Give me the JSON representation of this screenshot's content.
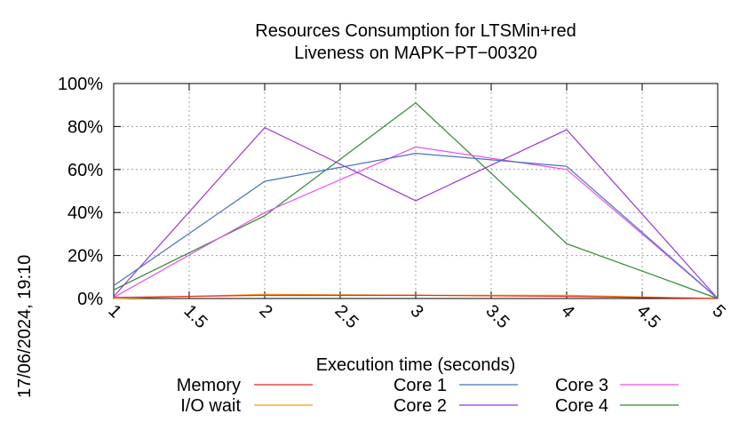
{
  "chart_data": {
    "type": "line",
    "title": "Resources Consumption for LTSMin+red",
    "subtitle": "Liveness on MAPK−PT−00320",
    "xlabel": "Execution time (seconds)",
    "ylabel": "",
    "timestamp": "17/06/2024, 19:10",
    "xlim": [
      1,
      5
    ],
    "ylim": [
      0,
      100
    ],
    "x_ticks": [
      "1",
      "1.5",
      "2",
      "2.5",
      "3",
      "3.5",
      "4",
      "4.5",
      "5"
    ],
    "x_tick_values": [
      1,
      1.5,
      2,
      2.5,
      3,
      3.5,
      4,
      4.5,
      5
    ],
    "y_ticks": [
      "0%",
      "20%",
      "40%",
      "60%",
      "80%",
      "100%"
    ],
    "y_tick_values": [
      0,
      20,
      40,
      60,
      80,
      100
    ],
    "grid": true,
    "legend_position": "bottom",
    "x": [
      1,
      2,
      3,
      4,
      5
    ],
    "series": [
      {
        "name": "Memory",
        "color": "#e8281e",
        "values": [
          0.5,
          1.5,
          1.5,
          1.0,
          0
        ]
      },
      {
        "name": "I/O wait",
        "color": "#f0a020",
        "values": [
          0,
          2,
          1.5,
          1.5,
          0
        ]
      },
      {
        "name": "Core 1",
        "color": "#4472c4",
        "values": [
          6,
          54.5,
          67.5,
          61.5,
          0
        ]
      },
      {
        "name": "Core 2",
        "color": "#9c36d4",
        "values": [
          1,
          79.5,
          45.5,
          78.5,
          0
        ]
      },
      {
        "name": "Core 3",
        "color": "#ee50ee",
        "values": [
          0.5,
          40,
          70.5,
          60,
          0
        ]
      },
      {
        "name": "Core 4",
        "color": "#2e8b2e",
        "values": [
          4,
          38.5,
          91,
          25.5,
          0
        ]
      }
    ]
  }
}
